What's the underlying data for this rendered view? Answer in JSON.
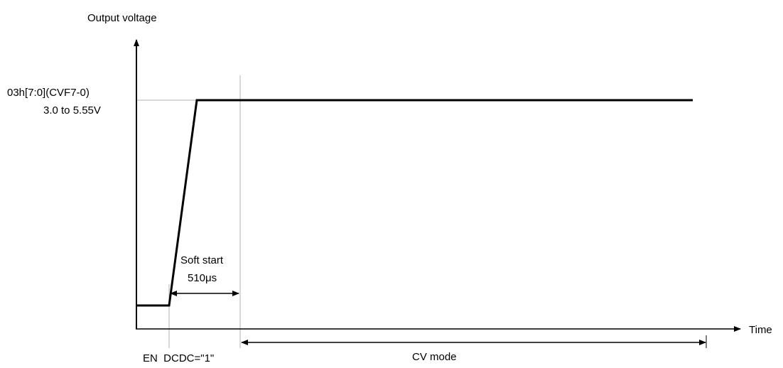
{
  "axes": {
    "y_label": "Output voltage",
    "x_label": "Time"
  },
  "level": {
    "register": "03h[7:0](CVF7-0)",
    "range": "3.0 to 5.55V"
  },
  "soft_start": {
    "title": "Soft start",
    "duration": "510μs"
  },
  "events": {
    "enable": "EN  DCDC=\"1\""
  },
  "modes": {
    "cv": "CV mode"
  }
}
